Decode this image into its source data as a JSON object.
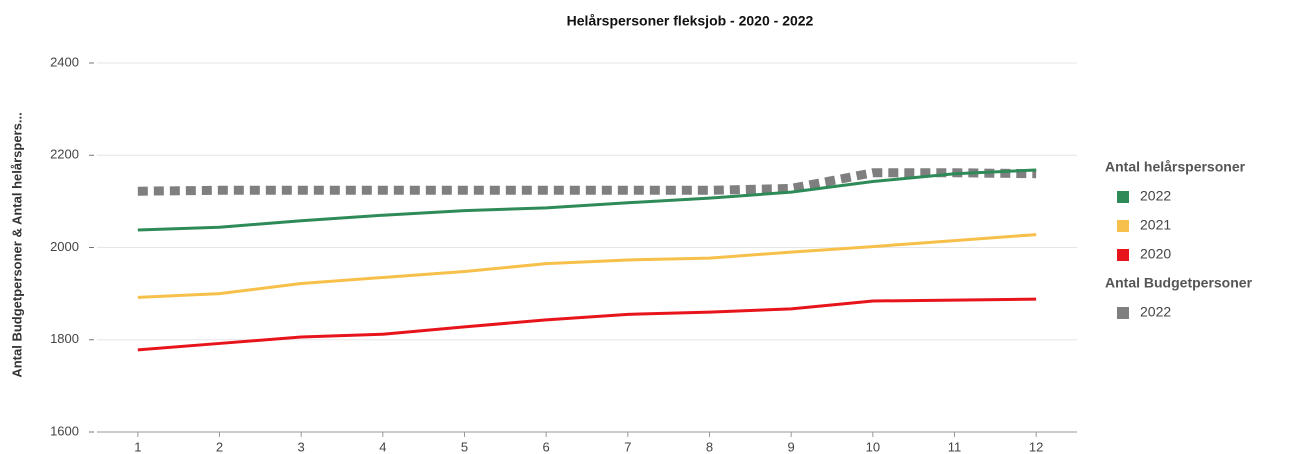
{
  "chart_data": {
    "type": "line",
    "title": "Helårspersoner fleksjob - 2020 - 2022",
    "y_label": "Antal Budgetpersoner & Antal helårspers...",
    "x": [
      1,
      2,
      3,
      4,
      5,
      6,
      7,
      8,
      9,
      10,
      11,
      12
    ],
    "xlim": [
      0.5,
      12.5
    ],
    "xticks": [
      1,
      2,
      3,
      4,
      5,
      6,
      7,
      8,
      9,
      10,
      11,
      12
    ],
    "ylim": [
      1600,
      2400
    ],
    "yticks": [
      1600,
      1800,
      2000,
      2200,
      2400
    ],
    "grid": true,
    "legend": "right",
    "series_groups": [
      {
        "title": "Antal helårspersoner",
        "series": [
          {
            "name": "2022",
            "color": "#2e8b57",
            "values": [
              2038,
              2044,
              2058,
              2070,
              2080,
              2086,
              2097,
              2107,
              2120,
              2143,
              2160,
              2168
            ]
          },
          {
            "name": "2021",
            "color": "#f7c04a",
            "values": [
              1892,
              1900,
              1922,
              1935,
              1948,
              1965,
              1973,
              1977,
              1990,
              2002,
              2015,
              2028
            ]
          },
          {
            "name": "2020",
            "color": "#e8141c",
            "values": [
              1778,
              1792,
              1806,
              1812,
              1828,
              1843,
              1855,
              1860,
              1867,
              1884,
              1886,
              1888
            ]
          }
        ]
      },
      {
        "title": "Antal Budgetpersoner",
        "dashed": true,
        "series": [
          {
            "name": "2022",
            "color": "#7f7f7f",
            "values": [
              2122,
              2124,
              2124,
              2124,
              2124,
              2124,
              2124,
              2124,
              2128,
              2162,
              2162,
              2160
            ]
          }
        ]
      }
    ]
  }
}
